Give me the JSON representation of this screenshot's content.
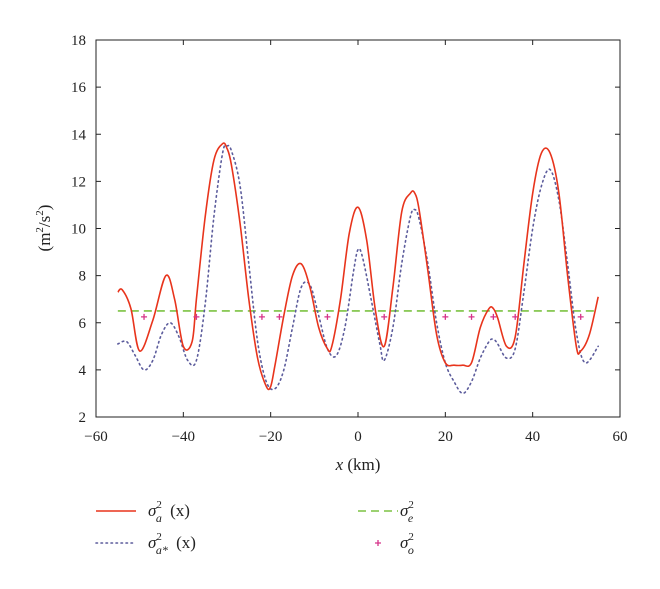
{
  "chart_data": {
    "type": "line",
    "xlabel": "x (km)",
    "ylabel": "(m2/s2)",
    "xlim": [
      -60,
      60
    ],
    "ylim": [
      2,
      18
    ],
    "xticks": [
      "−60",
      "−40",
      "−20",
      "0",
      "20",
      "40",
      "60"
    ],
    "yticks": [
      "2",
      "4",
      "6",
      "8",
      "10",
      "12",
      "14",
      "16",
      "18"
    ],
    "grid": false,
    "legend_position": "bottom",
    "series": [
      {
        "name": "σa2 (x)",
        "style": "solid",
        "color": "#e8341c",
        "x": [
          -55,
          -54,
          -52,
          -50,
          -47,
          -44,
          -42,
          -40,
          -38,
          -37,
          -35,
          -33,
          -31,
          -30,
          -29,
          -27,
          -25,
          -23,
          -21,
          -20,
          -19,
          -17,
          -15,
          -13,
          -11,
          -9,
          -7,
          -6,
          -4,
          -2,
          0,
          2,
          4,
          6,
          8,
          10,
          12,
          13,
          14,
          16,
          18,
          20,
          22,
          24,
          26,
          28,
          30,
          31,
          32,
          34,
          36,
          38,
          40,
          42,
          44,
          46,
          48,
          50,
          51,
          53,
          55
        ],
        "y": [
          7.3,
          7.4,
          6.6,
          4.8,
          6.1,
          8.0,
          7.0,
          5.0,
          5.2,
          7.0,
          10.5,
          12.9,
          13.6,
          13.4,
          12.7,
          10.2,
          7.0,
          4.5,
          3.3,
          3.3,
          4.2,
          6.3,
          8.0,
          8.5,
          7.5,
          5.8,
          4.9,
          5.0,
          7.0,
          9.8,
          10.9,
          9.5,
          6.5,
          5.0,
          7.5,
          10.7,
          11.5,
          11.5,
          10.8,
          8.2,
          5.5,
          4.3,
          4.2,
          4.2,
          4.3,
          5.8,
          6.6,
          6.6,
          6.2,
          5.0,
          5.4,
          8.5,
          11.5,
          13.2,
          13.2,
          11.5,
          8.0,
          5.0,
          4.8,
          5.5,
          7.1
        ]
      },
      {
        "name": "σa*2 (x)",
        "style": "dotted",
        "color": "#5c5c9c",
        "x": [
          -55,
          -53,
          -51,
          -49,
          -47,
          -45,
          -43,
          -41,
          -39,
          -37,
          -35,
          -33,
          -31,
          -30,
          -29,
          -27,
          -25,
          -23,
          -21,
          -19,
          -17,
          -15,
          -13,
          -11,
          -9,
          -7,
          -5,
          -3,
          -1,
          0,
          1,
          3,
          5,
          6,
          8,
          10,
          12,
          13,
          14,
          16,
          18,
          20,
          22,
          24,
          26,
          28,
          30,
          31,
          32,
          34,
          36,
          38,
          40,
          42,
          44,
          46,
          48,
          50,
          52,
          55
        ],
        "y": [
          5.1,
          5.2,
          4.6,
          4.0,
          4.4,
          5.5,
          6.0,
          5.4,
          4.4,
          4.4,
          6.8,
          10.5,
          13.2,
          13.5,
          13.3,
          11.8,
          8.5,
          5.2,
          3.5,
          3.2,
          4.0,
          5.8,
          7.5,
          7.6,
          6.3,
          4.9,
          4.6,
          5.8,
          8.2,
          9.1,
          8.8,
          7.0,
          5.1,
          4.4,
          5.8,
          8.5,
          10.5,
          10.8,
          10.4,
          8.5,
          6.0,
          4.3,
          3.5,
          3.0,
          3.5,
          4.5,
          5.2,
          5.3,
          5.1,
          4.5,
          4.9,
          7.3,
          10.0,
          11.8,
          12.5,
          11.2,
          8.5,
          5.6,
          4.3,
          5.0
        ]
      },
      {
        "name": "σe2",
        "style": "dashed",
        "color": "#7cc242",
        "x": [
          -55,
          55
        ],
        "y": [
          6.5,
          6.5
        ]
      },
      {
        "name": "σo2",
        "style": "markers",
        "color": "#d6338a",
        "x": [
          -49,
          -37,
          -22,
          -18,
          -7,
          6,
          20,
          26,
          31,
          36,
          51
        ],
        "y": [
          6.25,
          6.25,
          6.25,
          6.25,
          6.25,
          6.25,
          6.25,
          6.25,
          6.25,
          6.25,
          6.25
        ]
      }
    ]
  }
}
